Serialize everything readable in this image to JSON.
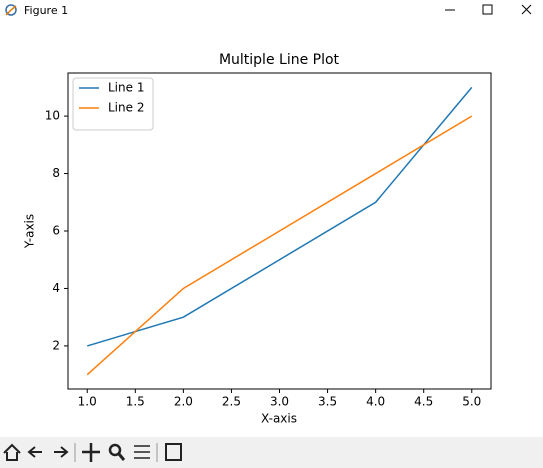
{
  "window": {
    "title": "Figure 1"
  },
  "chart_data": {
    "type": "line",
    "title": "Multiple Line Plot",
    "x_label": "X-axis",
    "y_label": "Y-axis",
    "x": [
      1,
      2,
      3,
      4,
      5
    ],
    "series": [
      {
        "name": "Line 1",
        "color": "#1f77b4",
        "values": [
          2,
          3,
          5,
          7,
          11
        ]
      },
      {
        "name": "Line 2",
        "color": "#ff7f0e",
        "values": [
          1,
          4,
          6,
          8,
          10
        ]
      }
    ],
    "xlim": [
      0.8,
      5.2
    ],
    "xticks": [
      {
        "value": 1,
        "label": "1.0"
      },
      {
        "value": 1.5,
        "label": "1.5"
      },
      {
        "value": 2,
        "label": "2.0"
      },
      {
        "value": 2.5,
        "label": "2.5"
      },
      {
        "value": 3,
        "label": "3.0"
      },
      {
        "value": 3.5,
        "label": "3.5"
      },
      {
        "value": 4,
        "label": "4.0"
      },
      {
        "value": 4.5,
        "label": "4.5"
      },
      {
        "value": 5,
        "label": "5.0"
      }
    ],
    "ylim": [
      0.5,
      11.5
    ],
    "yticks": [
      2,
      4,
      6,
      8,
      10
    ],
    "legend": "upper left",
    "grid": false
  }
}
